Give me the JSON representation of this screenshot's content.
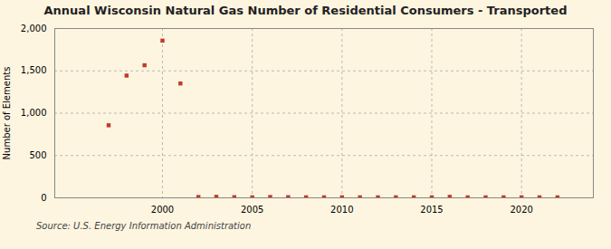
{
  "chart_data": {
    "type": "scatter",
    "title": "Annual Wisconsin Natural Gas Number of Residential Consumers - Transported",
    "ylabel": "Number of Elements",
    "annotations": [
      "Source: U.S. Energy Information Administration"
    ],
    "x": [
      1997,
      1998,
      1999,
      2000,
      2001,
      2002,
      2003,
      2004,
      2005,
      2006,
      2007,
      2008,
      2009,
      2010,
      2011,
      2012,
      2013,
      2014,
      2015,
      2016,
      2017,
      2018,
      2019,
      2020,
      2021,
      2022
    ],
    "values": [
      857,
      1444,
      1566,
      1857,
      1351,
      10,
      12,
      8,
      6,
      10,
      8,
      6,
      6,
      6,
      6,
      6,
      6,
      6,
      6,
      12,
      6,
      6,
      6,
      6,
      6,
      6
    ],
    "color": "#c0392b",
    "marker": "square",
    "xlim": [
      1994,
      2024
    ],
    "ylim": [
      0,
      2000
    ],
    "xticks": [
      2000,
      2005,
      2010,
      2015,
      2020
    ],
    "yticks": [
      0,
      500,
      {
        "value": 1000,
        "label": "1,000"
      },
      {
        "value": 1500,
        "label": "1,500"
      },
      {
        "value": 2000,
        "label": "2,000"
      }
    ],
    "grid": true
  }
}
